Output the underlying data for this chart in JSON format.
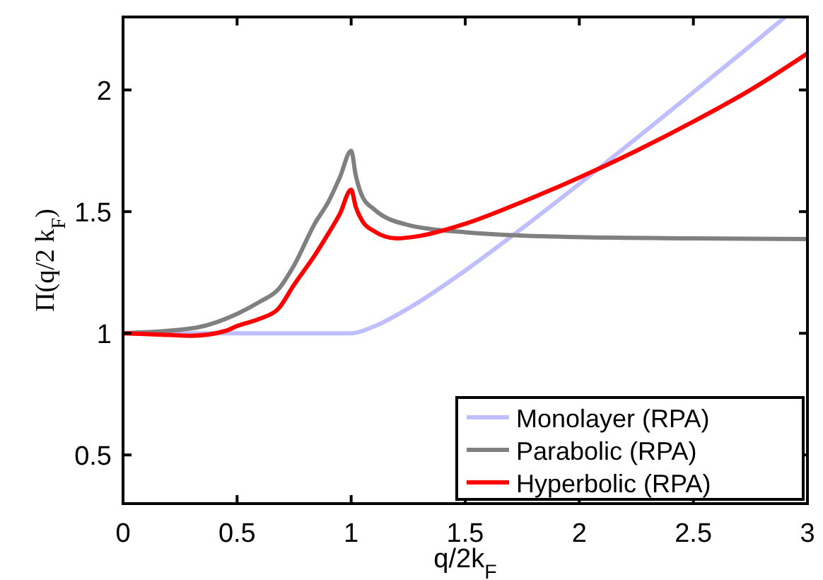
{
  "chart_data": {
    "type": "line",
    "xlabel": "q/2k$_{F}$",
    "ylabel": "Π(q/2 k$_{F}$)",
    "xlim": [
      0,
      3
    ],
    "ylim": [
      0.3,
      2.3
    ],
    "xticks": [
      0,
      0.5,
      1,
      1.5,
      2,
      2.5,
      3
    ],
    "yticks": [
      0.5,
      1,
      1.5,
      2
    ],
    "legend": "bottom right",
    "grid": false,
    "series": [
      {
        "name": "Monolayer (RPA)",
        "color": "#bfbfff",
        "x": [
          0,
          0.5,
          1,
          1.1,
          1.25,
          1.5,
          1.75,
          2,
          2.25,
          2.5,
          2.75,
          2.9
        ],
        "values": [
          1,
          1,
          1,
          1.028,
          1.102,
          1.258,
          1.432,
          1.614,
          1.801,
          1.991,
          2.182,
          2.298
        ]
      },
      {
        "name": "Parabolic (RPA)",
        "color": "#808080",
        "x": [
          0,
          0.3,
          0.5,
          0.6,
          0.68,
          0.75,
          0.84,
          0.9,
          0.95,
          1,
          1.02,
          1.05,
          1.1,
          1.25,
          1.5,
          2,
          2.5,
          3
        ],
        "values": [
          1,
          1.02,
          1.08,
          1.13,
          1.18,
          1.28,
          1.45,
          1.54,
          1.64,
          1.75,
          1.65,
          1.56,
          1.51,
          1.445,
          1.415,
          1.395,
          1.39,
          1.387
        ]
      },
      {
        "name": "Hyperbolic (RPA)",
        "color": "#ff0000",
        "x": [
          0,
          0.15,
          0.3,
          0.45,
          0.5,
          0.6,
          0.68,
          0.75,
          0.84,
          0.9,
          0.95,
          1,
          1.02,
          1.05,
          1.1,
          1.2,
          1.3,
          1.5,
          1.75,
          2,
          2.25,
          2.5,
          2.75,
          3
        ],
        "values": [
          1,
          0.995,
          0.99,
          1.01,
          1.03,
          1.06,
          1.1,
          1.2,
          1.32,
          1.41,
          1.49,
          1.59,
          1.52,
          1.46,
          1.42,
          1.39,
          1.4,
          1.45,
          1.54,
          1.64,
          1.75,
          1.87,
          2,
          2.15
        ]
      }
    ]
  }
}
